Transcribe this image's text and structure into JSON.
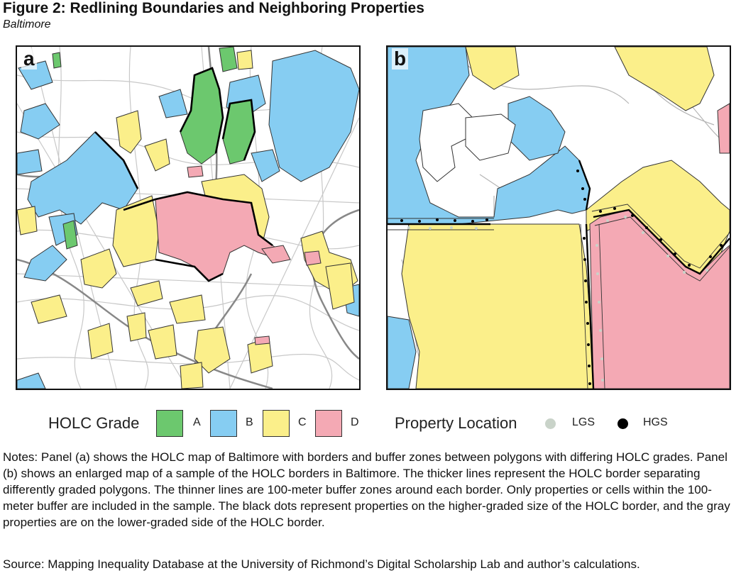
{
  "figure": {
    "title": "Figure 2: Redlining Boundaries and Neighboring Properties",
    "subtitle": "Baltimore"
  },
  "panels": {
    "a_label": "a",
    "b_label": "b"
  },
  "legend": {
    "grade_title": "HOLC Grade",
    "grades": [
      {
        "label": "A",
        "color": "#6cc86e"
      },
      {
        "label": "B",
        "color": "#86cdf2"
      },
      {
        "label": "C",
        "color": "#fbef8a"
      },
      {
        "label": "D",
        "color": "#f4a9b4"
      }
    ],
    "property_title": "Property Location",
    "properties": [
      {
        "label": "LGS",
        "color": "#c9d3c9"
      },
      {
        "label": "HGS",
        "color": "#000000"
      }
    ]
  },
  "notes": "Notes: Panel (a) shows the HOLC map of Baltimore with borders and buffer zones between polygons with differing HOLC grades. Panel (b) shows an enlarged map of a sample of the HOLC borders in Baltimore. The thicker lines represent the HOLC border separating differently graded polygons. The thinner lines are 100-meter buffer zones around each border. Only properties or cells within the 100-meter buffer are included in the sample. The black dots represent properties on the higher-graded size of the HOLC border, and the gray properties are on the lower-graded side of the HOLC border.",
  "source": "Source: Mapping Inequality Database at the University of Richmond’s Digital Scholarship Lab and author’s calculations."
}
